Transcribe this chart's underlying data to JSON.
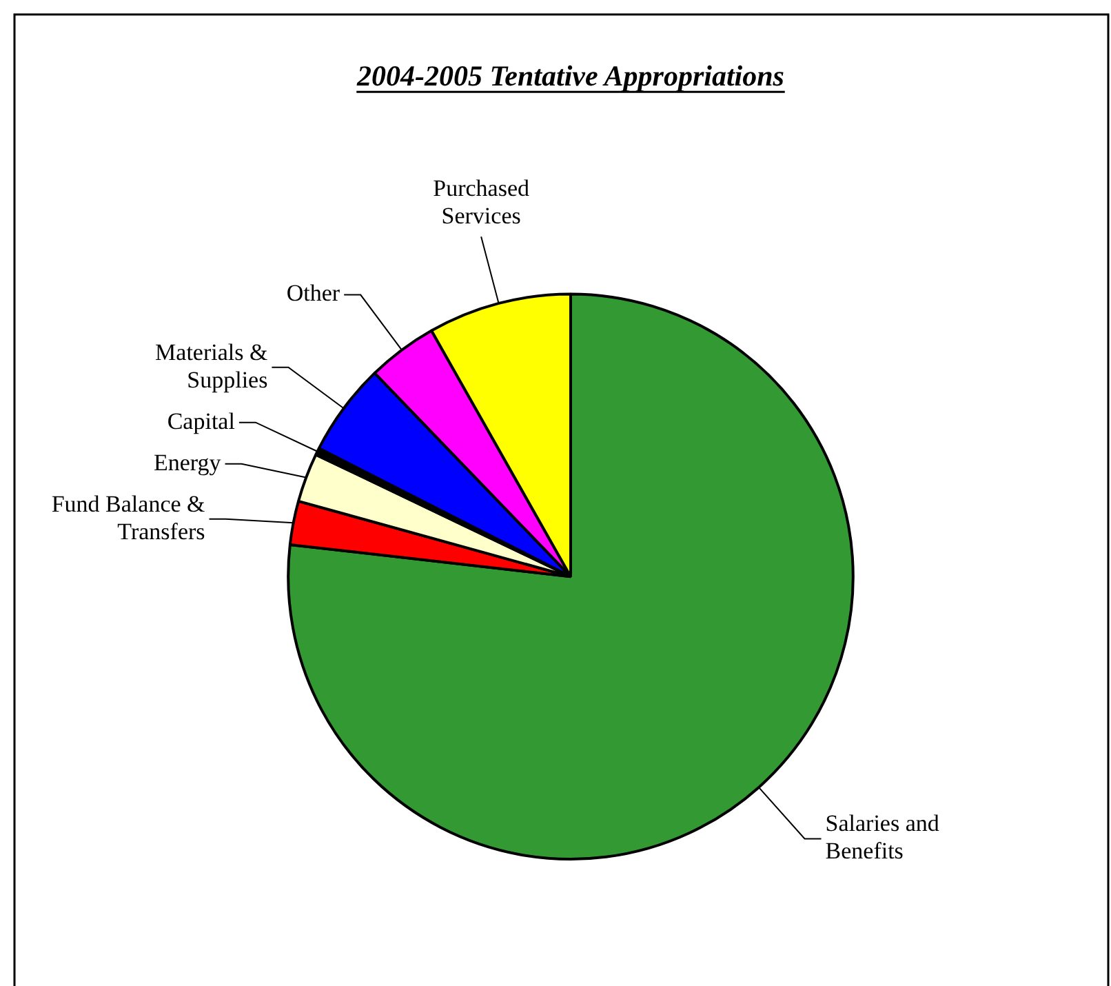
{
  "chart_data": {
    "type": "pie",
    "title": "2004-2005 Tentative Appropriations",
    "categories": [
      "Salaries and Benefits",
      "Fund Balance & Transfers",
      "Energy",
      "Capital",
      "Materials & Supplies",
      "Other",
      "Purchased Services"
    ],
    "values": [
      76.8,
      2.5,
      2.8,
      0.4,
      5.3,
      4.0,
      8.2
    ],
    "colors": [
      "#339933",
      "#ff0000",
      "#ffffcc",
      "#000000",
      "#0000ff",
      "#ff00ff",
      "#ffff00"
    ]
  }
}
